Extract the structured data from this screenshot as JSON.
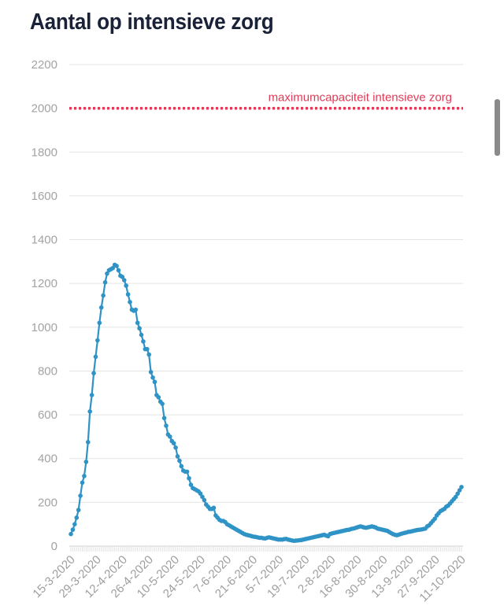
{
  "title": "Aantal op intensieve zorg",
  "reference": {
    "label": "maximumcapaciteit intensieve zorg",
    "value": 2000,
    "color": "#e03a57"
  },
  "series_color": "#2f93c6",
  "chart_data": {
    "type": "line",
    "title": "Aantal op intensieve zorg",
    "xlabel": "",
    "ylabel": "",
    "ylim": [
      0,
      2200
    ],
    "yticks": [
      0,
      200,
      400,
      600,
      800,
      1000,
      1200,
      1400,
      1600,
      1800,
      2000,
      2200
    ],
    "xticks": [
      "15-3-2020",
      "29-3-2020",
      "12-4-2020",
      "26-4-2020",
      "10-5-2020",
      "24-5-2020",
      "7-6-2020",
      "21-6-2020",
      "5-7-2020",
      "19-7-2020",
      "2-8-2020",
      "16-8-2020",
      "30-8-2020",
      "13-9-2020",
      "27-9-2020",
      "11-10-2020"
    ],
    "grid": true,
    "reference_line": {
      "value": 2000,
      "label": "maximumcapaciteit intensieve zorg"
    },
    "start_date": "15-3-2020",
    "end_date": "11-10-2020",
    "series": [
      {
        "values": [
          55,
          75,
          100,
          130,
          165,
          230,
          290,
          320,
          385,
          475,
          615,
          690,
          790,
          865,
          940,
          1020,
          1090,
          1145,
          1205,
          1245,
          1260,
          1265,
          1270,
          1285,
          1280,
          1260,
          1235,
          1230,
          1215,
          1190,
          1150,
          1115,
          1080,
          1075,
          1080,
          1020,
          995,
          965,
          935,
          900,
          900,
          875,
          795,
          770,
          750,
          690,
          680,
          660,
          650,
          585,
          550,
          510,
          500,
          480,
          470,
          450,
          410,
          390,
          365,
          345,
          340,
          340,
          310,
          280,
          265,
          260,
          255,
          250,
          240,
          225,
          210,
          190,
          180,
          170,
          170,
          175,
          140,
          130,
          120,
          115,
          115,
          110,
          100,
          95,
          90,
          85,
          80,
          75,
          70,
          65,
          60,
          55,
          52,
          50,
          48,
          45,
          43,
          42,
          40,
          38,
          38,
          36,
          35,
          38,
          40,
          38,
          36,
          34,
          32,
          30,
          30,
          30,
          32,
          33,
          30,
          28,
          26,
          24,
          25,
          26,
          27,
          28,
          30,
          32,
          34,
          36,
          38,
          40,
          42,
          44,
          46,
          48,
          50,
          52,
          48,
          45,
          55,
          58,
          60,
          62,
          64,
          66,
          68,
          70,
          72,
          74,
          75,
          78,
          80,
          82,
          85,
          88,
          90,
          88,
          85,
          84,
          86,
          88,
          90,
          88,
          85,
          80,
          78,
          76,
          74,
          72,
          70,
          65,
          60,
          55,
          52,
          50,
          52,
          55,
          58,
          60,
          62,
          65,
          66,
          68,
          70,
          72,
          74,
          75,
          76,
          78,
          80,
          90,
          95,
          105,
          115,
          125,
          140,
          150,
          160,
          165,
          170,
          180,
          185,
          195,
          205,
          215,
          225,
          240,
          255,
          270
        ]
      }
    ]
  }
}
